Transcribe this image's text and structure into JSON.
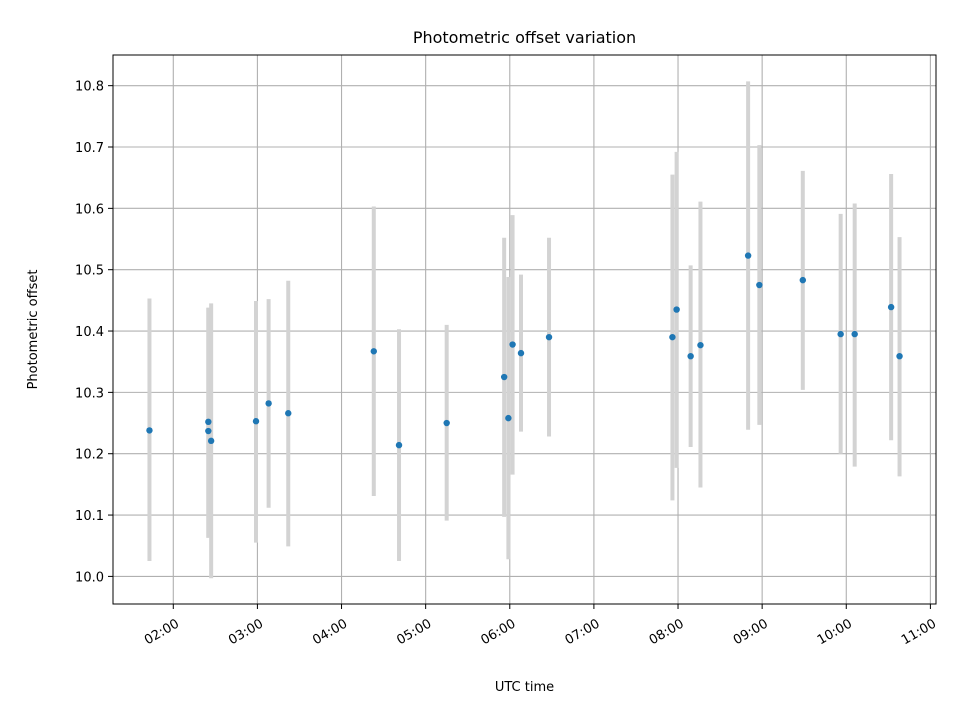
{
  "chart_data": {
    "type": "scatter",
    "title": "Photometric offset variation",
    "xlabel": "UTC time",
    "ylabel": "Photometric offset",
    "x_tick_labels": [
      "02:00",
      "03:00",
      "04:00",
      "05:00",
      "06:00",
      "07:00",
      "08:00",
      "09:00",
      "10:00",
      "11:00"
    ],
    "y_tick_labels": [
      "10.0",
      "10.1",
      "10.2",
      "10.3",
      "10.4",
      "10.5",
      "10.6",
      "10.7",
      "10.8"
    ],
    "xlim": [
      "01:17",
      "11:04"
    ],
    "ylim": [
      9.955,
      10.85
    ],
    "grid": true,
    "colors": {
      "points": "#1f77b4",
      "errorbars": "#d3d3d3",
      "grid": "#b0b0b0"
    },
    "series": [
      {
        "points": [
          {
            "x": "01:43",
            "y": 10.238,
            "ylow": 10.025,
            "yhigh": 10.453
          },
          {
            "x": "02:25",
            "y": 10.252,
            "ylow": 10.063,
            "yhigh": 10.438
          },
          {
            "x": "02:25",
            "y": 10.237,
            "ylow": 10.063,
            "yhigh": 10.438
          },
          {
            "x": "02:27",
            "y": 10.221,
            "ylow": 9.997,
            "yhigh": 10.445
          },
          {
            "x": "02:59",
            "y": 10.253,
            "ylow": 10.055,
            "yhigh": 10.449
          },
          {
            "x": "03:08",
            "y": 10.282,
            "ylow": 10.112,
            "yhigh": 10.452
          },
          {
            "x": "03:22",
            "y": 10.266,
            "ylow": 10.049,
            "yhigh": 10.482
          },
          {
            "x": "04:23",
            "y": 10.367,
            "ylow": 10.131,
            "yhigh": 10.603
          },
          {
            "x": "04:41",
            "y": 10.214,
            "ylow": 10.025,
            "yhigh": 10.403
          },
          {
            "x": "05:15",
            "y": 10.25,
            "ylow": 10.091,
            "yhigh": 10.41
          },
          {
            "x": "05:56",
            "y": 10.325,
            "ylow": 10.097,
            "yhigh": 10.552
          },
          {
            "x": "05:59",
            "y": 10.258,
            "ylow": 10.028,
            "yhigh": 10.488
          },
          {
            "x": "06:02",
            "y": 10.378,
            "ylow": 10.166,
            "yhigh": 10.589
          },
          {
            "x": "06:08",
            "y": 10.364,
            "ylow": 10.236,
            "yhigh": 10.492
          },
          {
            "x": "06:28",
            "y": 10.39,
            "ylow": 10.228,
            "yhigh": 10.552
          },
          {
            "x": "07:56",
            "y": 10.39,
            "ylow": 10.124,
            "yhigh": 10.655
          },
          {
            "x": "07:59",
            "y": 10.435,
            "ylow": 10.177,
            "yhigh": 10.692
          },
          {
            "x": "08:09",
            "y": 10.359,
            "ylow": 10.211,
            "yhigh": 10.507
          },
          {
            "x": "08:16",
            "y": 10.377,
            "ylow": 10.145,
            "yhigh": 10.611
          },
          {
            "x": "08:50",
            "y": 10.523,
            "ylow": 10.239,
            "yhigh": 10.807
          },
          {
            "x": "08:58",
            "y": 10.475,
            "ylow": 10.247,
            "yhigh": 10.703
          },
          {
            "x": "09:29",
            "y": 10.483,
            "ylow": 10.304,
            "yhigh": 10.661
          },
          {
            "x": "09:56",
            "y": 10.395,
            "ylow": 10.2,
            "yhigh": 10.591
          },
          {
            "x": "10:06",
            "y": 10.395,
            "ylow": 10.179,
            "yhigh": 10.608
          },
          {
            "x": "10:32",
            "y": 10.439,
            "ylow": 10.222,
            "yhigh": 10.656
          },
          {
            "x": "10:38",
            "y": 10.359,
            "ylow": 10.163,
            "yhigh": 10.553
          }
        ]
      }
    ]
  }
}
